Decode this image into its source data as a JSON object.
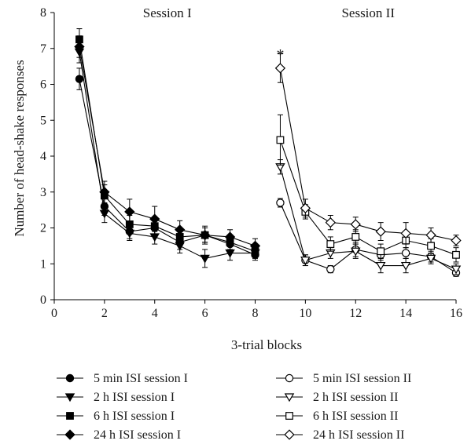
{
  "chart_data": {
    "type": "line",
    "xlabel": "3-trial blocks",
    "ylabel": "Number of head-shake responses",
    "xlim": [
      0,
      16
    ],
    "ylim": [
      0,
      8
    ],
    "xticks": [
      0,
      2,
      4,
      6,
      8,
      10,
      12,
      14,
      16
    ],
    "yticks": [
      0,
      1,
      2,
      3,
      4,
      5,
      6,
      7,
      8
    ],
    "grid": false,
    "legend_position": "bottom",
    "panel_labels": [
      {
        "text": "Session I",
        "x": 4.5
      },
      {
        "text": "Session II",
        "x": 12.5
      }
    ],
    "annotations": [
      {
        "text": "*",
        "x": 9,
        "y": 7.0
      }
    ],
    "series": [
      {
        "name": "5 min ISI session I",
        "marker": "circle",
        "filled": true,
        "x": [
          1,
          2,
          3,
          4,
          5,
          6,
          7,
          8
        ],
        "y": [
          6.15,
          2.6,
          1.9,
          2.0,
          1.6,
          1.8,
          1.55,
          1.25
        ],
        "err": [
          0.3,
          0.25,
          0.2,
          0.2,
          0.2,
          0.2,
          0.2,
          0.15
        ]
      },
      {
        "name": "5 min ISI session II",
        "marker": "circle",
        "filled": false,
        "x": [
          9,
          10,
          11,
          12,
          13,
          14,
          15,
          16
        ],
        "y": [
          2.7,
          1.1,
          0.85,
          1.4,
          1.25,
          1.3,
          1.2,
          0.75
        ],
        "err": [
          0.12,
          0.15,
          0.1,
          0.2,
          0.15,
          0.15,
          0.15,
          0.1
        ]
      },
      {
        "name": "2 h ISI session I",
        "marker": "triangle-down",
        "filled": true,
        "x": [
          1,
          2,
          3,
          4,
          5,
          6,
          7,
          8
        ],
        "y": [
          6.9,
          2.4,
          1.85,
          1.75,
          1.5,
          1.15,
          1.3,
          1.3
        ],
        "err": [
          0.3,
          0.25,
          0.2,
          0.2,
          0.2,
          0.25,
          0.2,
          0.15
        ]
      },
      {
        "name": "2 h ISI session II",
        "marker": "triangle-down",
        "filled": false,
        "x": [
          9,
          10,
          11,
          12,
          13,
          14,
          15,
          16
        ],
        "y": [
          3.7,
          1.1,
          1.3,
          1.35,
          0.95,
          0.95,
          1.15,
          0.85
        ],
        "err": [
          0.2,
          0.15,
          0.15,
          0.2,
          0.2,
          0.2,
          0.15,
          0.15
        ]
      },
      {
        "name": "6 h ISI session I",
        "marker": "square",
        "filled": true,
        "x": [
          1,
          2,
          3,
          4,
          5,
          6,
          7,
          8
        ],
        "y": [
          7.25,
          2.9,
          2.1,
          2.05,
          1.75,
          1.8,
          1.6,
          1.35
        ],
        "err": [
          0.3,
          0.3,
          0.25,
          0.25,
          0.25,
          0.2,
          0.2,
          0.15
        ]
      },
      {
        "name": "6 h ISI session II",
        "marker": "square",
        "filled": false,
        "x": [
          9,
          10,
          11,
          12,
          13,
          14,
          15,
          16
        ],
        "y": [
          4.45,
          2.45,
          1.55,
          1.75,
          1.35,
          1.65,
          1.5,
          1.25
        ],
        "err": [
          0.7,
          0.2,
          0.2,
          0.2,
          0.2,
          0.2,
          0.2,
          0.2
        ]
      },
      {
        "name": "24 h ISI session I",
        "marker": "diamond",
        "filled": true,
        "x": [
          1,
          2,
          3,
          4,
          5,
          6,
          7,
          8
        ],
        "y": [
          7.05,
          3.0,
          2.45,
          2.25,
          1.95,
          1.8,
          1.75,
          1.5
        ],
        "err": [
          0.3,
          0.3,
          0.35,
          0.35,
          0.25,
          0.25,
          0.2,
          0.2
        ]
      },
      {
        "name": "24 h ISI session II",
        "marker": "diamond",
        "filled": false,
        "x": [
          9,
          10,
          11,
          12,
          13,
          14,
          15,
          16
        ],
        "y": [
          6.45,
          2.55,
          2.15,
          2.1,
          1.9,
          1.85,
          1.8,
          1.65
        ],
        "err": [
          0.4,
          0.25,
          0.2,
          0.2,
          0.25,
          0.3,
          0.2,
          0.15
        ]
      }
    ]
  }
}
